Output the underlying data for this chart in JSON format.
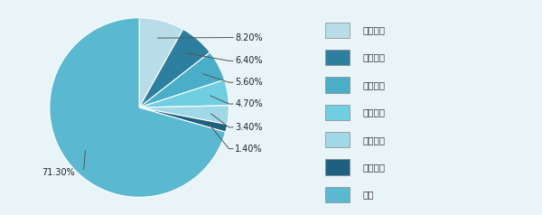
{
  "labels": [
    "郑州宇通",
    "北汽福田",
    "厦门金龙",
    "厦门金旅",
    "苏州金龙",
    "安凯汽车",
    "其它"
  ],
  "values": [
    8.2,
    6.4,
    5.6,
    4.7,
    3.4,
    1.4,
    71.3
  ],
  "colors": [
    "#b8dde8",
    "#2d7fa0",
    "#4aaec8",
    "#6fcfe0",
    "#a0d8e8",
    "#1e6080",
    "#5ab8d0"
  ],
  "pct_labels": [
    "8.20%",
    "6.40%",
    "5.60%",
    "4.70%",
    "3.40%",
    "1.40%",
    "71.30%"
  ],
  "bg_color": "#e8f4f8",
  "figsize": [
    6.0,
    2.38
  ],
  "dpi": 100
}
